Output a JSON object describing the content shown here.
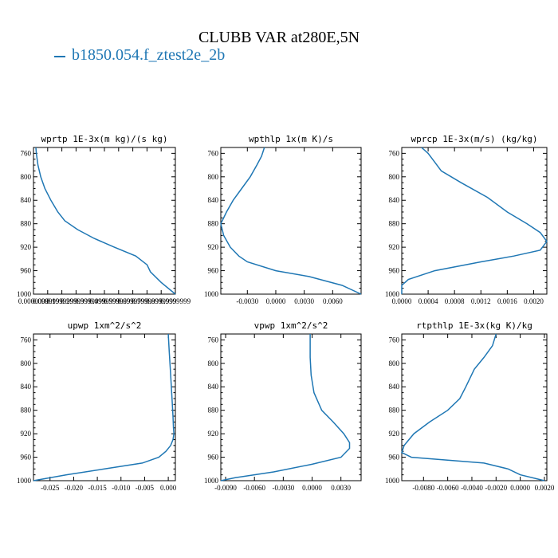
{
  "figure": {
    "title": "CLUBB VAR at280E,5N",
    "legend_label": "b1850.054.f_ztest2e_2b",
    "series_color": "#1f77b4"
  },
  "chart_data": [
    {
      "type": "line",
      "title": "wprtp  1E-3x(m kg)/(s kg)",
      "xlim": [
        0.0,
        0.9999999
      ],
      "xticks": [
        "0.0000000",
        "0.0999999",
        "0.1999999",
        "0.2999999",
        "0.3999999",
        "0.4999999",
        "0.5999999",
        "0.6999999",
        "0.7999999",
        "0.8999999",
        "0.9999999"
      ],
      "xtick_values": [
        0.0,
        0.1,
        0.2,
        0.3,
        0.4,
        0.5,
        0.6,
        0.7,
        0.8,
        0.9,
        1.0
      ],
      "ylim": [
        1000,
        750
      ],
      "yticks": [
        760,
        800,
        840,
        880,
        920,
        960,
        1000
      ],
      "x": [
        0.0167,
        0.0205,
        0.0313,
        0.051,
        0.0805,
        0.1225,
        0.1719,
        0.2209,
        0.3105,
        0.4282,
        0.5699,
        0.7209,
        0.8004,
        0.8239,
        0.8998,
        0.9999
      ],
      "y": [
        750,
        760,
        780,
        800,
        820,
        840,
        860,
        875,
        890,
        905,
        920,
        935,
        950,
        962,
        980,
        1000
      ]
    },
    {
      "type": "line",
      "title": "wpthlp  1x(m K)/s",
      "xlim": [
        -0.0058,
        0.009
      ],
      "xticks": [
        "-0.0030",
        "0.0000",
        "0.0030",
        "0.0060"
      ],
      "xtick_values": [
        -0.003,
        0.0,
        0.003,
        0.006
      ],
      "ylim": [
        1000,
        750
      ],
      "yticks": [
        760,
        800,
        840,
        880,
        920,
        960,
        1000
      ],
      "x": [
        -0.0012,
        -0.0015,
        -0.002,
        -0.0027,
        -0.0036,
        -0.0045,
        -0.0052,
        -0.0058,
        -0.0055,
        -0.0048,
        -0.0039,
        -0.003,
        0.0,
        0.0035,
        0.007,
        0.009
      ],
      "y": [
        750,
        765,
        780,
        800,
        820,
        840,
        860,
        880,
        900,
        920,
        935,
        945,
        960,
        970,
        985,
        1000
      ]
    },
    {
      "type": "line",
      "title": "wprcp  1E-3x(m/s) (kg/kg)",
      "xlim": [
        0.0,
        0.0022
      ],
      "xticks": [
        "0.0000",
        "0.0004",
        "0.0008",
        "0.0012",
        "0.0016",
        "0.0020"
      ],
      "xtick_values": [
        0.0,
        0.0004,
        0.0008,
        0.0012,
        0.0016,
        0.002
      ],
      "ylim": [
        1000,
        750
      ],
      "yticks": [
        760,
        800,
        840,
        880,
        920,
        960,
        1000
      ],
      "x": [
        0.0003,
        0.0004,
        0.0005,
        0.0006,
        0.0009,
        0.0013,
        0.0016,
        0.0019,
        0.0021,
        0.0022,
        0.0021,
        0.0017,
        0.0012,
        0.0005,
        0.0001,
        0.0,
        0.0
      ],
      "y": [
        750,
        760,
        775,
        790,
        810,
        835,
        860,
        880,
        895,
        910,
        925,
        935,
        945,
        960,
        975,
        985,
        1000
      ]
    },
    {
      "type": "line",
      "title": "upwp  1xm^2/s^2",
      "xlim": [
        -0.0285,
        0.0015
      ],
      "xticks": [
        "-0.025",
        "-0.020",
        "-0.015",
        "-0.010",
        "-0.005",
        "0.000"
      ],
      "xtick_values": [
        -0.025,
        -0.02,
        -0.015,
        -0.01,
        -0.005,
        0.0
      ],
      "ylim": [
        1000,
        750
      ],
      "yticks": [
        760,
        800,
        840,
        880,
        920,
        960,
        1000
      ],
      "x": [
        0.0,
        0.0002,
        0.0005,
        0.0008,
        0.001,
        0.0011,
        0.0012,
        0.001,
        0.0005,
        -0.0005,
        -0.002,
        -0.0055,
        -0.0135,
        -0.0215,
        -0.0285
      ],
      "y": [
        750,
        780,
        820,
        860,
        890,
        910,
        920,
        930,
        940,
        950,
        960,
        970,
        980,
        990,
        1000
      ]
    },
    {
      "type": "line",
      "title": "vpwp  1xm^2/s^2",
      "xlim": [
        -0.0095,
        0.0051
      ],
      "xticks": [
        "-0.0090",
        "-0.0060",
        "-0.0030",
        "0.0000",
        "0.0030"
      ],
      "xtick_values": [
        -0.009,
        -0.006,
        -0.003,
        0.0,
        0.003
      ],
      "ylim": [
        1000,
        750
      ],
      "yticks": [
        760,
        800,
        840,
        880,
        920,
        960,
        1000
      ],
      "x": [
        -0.0002,
        -0.0002,
        -0.0001,
        0.0002,
        0.001,
        0.0022,
        0.0033,
        0.0039,
        0.0039,
        0.003,
        0.0,
        -0.004,
        -0.008,
        -0.0095
      ],
      "y": [
        750,
        790,
        820,
        850,
        880,
        900,
        920,
        935,
        945,
        960,
        972,
        985,
        995,
        1000
      ]
    },
    {
      "type": "line",
      "title": "rtpthlp  1E-3x(kg K)/kg",
      "xlim": [
        -0.0098,
        0.0022
      ],
      "xticks": [
        "-0.0080",
        "-0.0060",
        "-0.0040",
        "-0.0020",
        "0.0000",
        "0.0020"
      ],
      "xtick_values": [
        -0.008,
        -0.006,
        -0.004,
        -0.002,
        0.0,
        0.002
      ],
      "ylim": [
        1000,
        750
      ],
      "yticks": [
        760,
        800,
        840,
        880,
        920,
        960,
        1000
      ],
      "x": [
        -0.002,
        -0.0023,
        -0.003,
        -0.0038,
        -0.0045,
        -0.005,
        -0.006,
        -0.0075,
        -0.0088,
        -0.0096,
        -0.0098,
        -0.009,
        -0.006,
        -0.003,
        -0.001,
        0.0,
        0.002
      ],
      "y": [
        750,
        770,
        790,
        810,
        840,
        860,
        880,
        900,
        920,
        940,
        952,
        960,
        965,
        970,
        980,
        990,
        1000
      ]
    }
  ]
}
